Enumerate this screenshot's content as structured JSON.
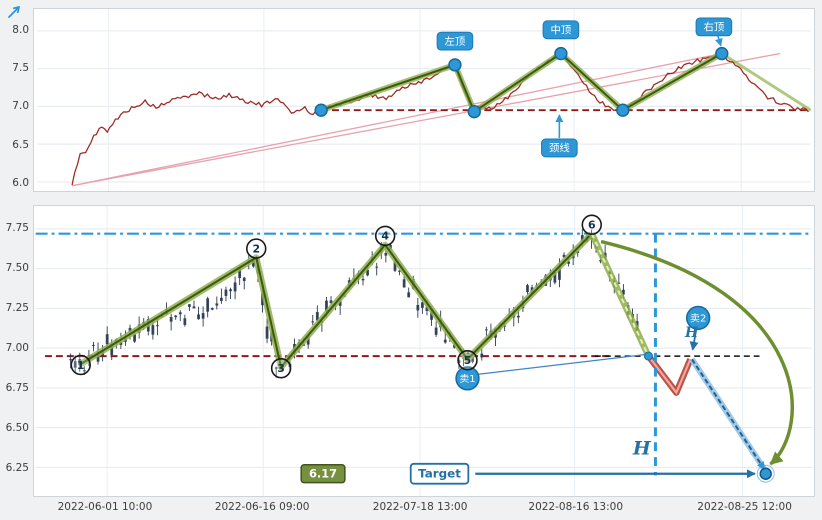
{
  "axes": {
    "top_yticks": [
      "8.0",
      "7.5",
      "7.0",
      "6.5",
      "6.0"
    ],
    "bottom_yticks": [
      "7.75",
      "7.50",
      "7.25",
      "7.00",
      "6.75",
      "6.50",
      "6.25"
    ],
    "xticks": [
      "2022-06-01 10:00",
      "2022-06-16 09:00",
      "2022-07-18 13:00",
      "2022-08-16 13:00",
      "2022-08-25 12:00"
    ]
  },
  "colors": {
    "price_line": "#9e2b25",
    "neckline_red": "#8e1b1b",
    "pattern_green_halo": "#8fae4c",
    "pattern_green_core": "#3a5a12",
    "annotation_blue": "#2e97d6",
    "arrow_blue": "#2471a3",
    "candle": "#2b3a55",
    "pink_trendline": "#e6a3ad",
    "pullback_red": "#b03427",
    "olive_badge": "#75903e"
  },
  "chart_data": [
    {
      "panel": "top",
      "type": "line",
      "title": "",
      "ylim": [
        5.88,
        8.29
      ],
      "yticks": [
        8.0,
        7.5,
        7.0,
        6.5,
        6.0
      ],
      "series": [
        {
          "name": "price",
          "color": "#9e2b25",
          "anchors": [
            [
              0.045,
              5.95
            ],
            [
              0.05,
              6.18
            ],
            [
              0.057,
              6.42
            ],
            [
              0.063,
              6.38
            ],
            [
              0.072,
              6.58
            ],
            [
              0.082,
              6.72
            ],
            [
              0.09,
              6.68
            ],
            [
              0.1,
              6.8
            ],
            [
              0.112,
              6.92
            ],
            [
              0.125,
              7.0
            ],
            [
              0.14,
              7.06
            ],
            [
              0.155,
              6.98
            ],
            [
              0.17,
              7.07
            ],
            [
              0.19,
              7.12
            ],
            [
              0.21,
              7.18
            ],
            [
              0.23,
              7.1
            ],
            [
              0.25,
              7.15
            ],
            [
              0.27,
              7.07
            ],
            [
              0.29,
              7.02
            ],
            [
              0.31,
              7.09
            ],
            [
              0.33,
              6.92
            ],
            [
              0.345,
              6.99
            ],
            [
              0.356,
              6.9
            ],
            [
              0.367,
              6.95
            ],
            [
              0.39,
              7.03
            ],
            [
              0.41,
              7.08
            ],
            [
              0.43,
              7.16
            ],
            [
              0.45,
              7.1
            ],
            [
              0.47,
              7.24
            ],
            [
              0.49,
              7.3
            ],
            [
              0.51,
              7.4
            ],
            [
              0.53,
              7.5
            ],
            [
              0.54,
              7.55
            ],
            [
              0.55,
              7.28
            ],
            [
              0.558,
              7.04
            ],
            [
              0.565,
              6.93
            ],
            [
              0.572,
              7.03
            ],
            [
              0.58,
              6.95
            ],
            [
              0.592,
              7.0
            ],
            [
              0.61,
              7.14
            ],
            [
              0.63,
              7.34
            ],
            [
              0.65,
              7.54
            ],
            [
              0.665,
              7.64
            ],
            [
              0.677,
              7.7
            ],
            [
              0.69,
              7.54
            ],
            [
              0.702,
              7.38
            ],
            [
              0.716,
              7.18
            ],
            [
              0.73,
              7.04
            ],
            [
              0.745,
              6.97
            ],
            [
              0.757,
              6.95
            ],
            [
              0.772,
              7.06
            ],
            [
              0.788,
              7.2
            ],
            [
              0.805,
              7.34
            ],
            [
              0.825,
              7.48
            ],
            [
              0.845,
              7.58
            ],
            [
              0.865,
              7.64
            ],
            [
              0.885,
              7.7
            ],
            [
              0.905,
              7.52
            ],
            [
              0.925,
              7.32
            ],
            [
              0.945,
              7.12
            ],
            [
              0.965,
              7.02
            ],
            [
              0.982,
              6.97
            ],
            [
              1.0,
              6.95
            ]
          ]
        }
      ],
      "pivots": [
        {
          "x": 0.367,
          "v": 6.95,
          "label": ""
        },
        {
          "x": 0.54,
          "v": 7.55,
          "label": "左顶"
        },
        {
          "x": 0.565,
          "v": 6.93,
          "label": ""
        },
        {
          "x": 0.677,
          "v": 7.7,
          "label": "中顶"
        },
        {
          "x": 0.757,
          "v": 6.95,
          "label": ""
        },
        {
          "x": 0.885,
          "v": 7.7,
          "label": "右顶"
        }
      ],
      "neckline": {
        "v": 6.95,
        "x0": 0.367,
        "x1": 1.0,
        "label": "颈线",
        "label_x": 0.675,
        "label_v": 6.45
      },
      "trendlines": [
        {
          "x0": 0.045,
          "v0": 5.95,
          "x1": 0.885,
          "v1": 7.7
        },
        {
          "x0": 0.045,
          "v0": 5.95,
          "x1": 0.96,
          "v1": 7.7
        }
      ],
      "tail": {
        "x0": 0.885,
        "v0": 7.7,
        "x1": 1.0,
        "v1": 6.95
      }
    },
    {
      "panel": "bottom",
      "type": "candlestick",
      "title": "",
      "ylim": [
        6.07,
        7.894
      ],
      "yticks": [
        7.75,
        7.5,
        7.25,
        7.0,
        6.75,
        6.5,
        6.25
      ],
      "xticks": [
        {
          "pos": 0.092,
          "label": "2022-06-01 10:00"
        },
        {
          "pos": 0.293,
          "label": "2022-06-16 09:00"
        },
        {
          "pos": 0.495,
          "label": "2022-07-18 13:00"
        },
        {
          "pos": 0.694,
          "label": "2022-08-16 13:00"
        },
        {
          "pos": 0.91,
          "label": "2022-08-25 12:00"
        }
      ],
      "candles": {
        "color": "#2b3a55",
        "x0": 0.045,
        "x1": 0.78,
        "step": 4.6,
        "body": 2.8,
        "seed": 11,
        "trend": [
          [
            0.045,
            6.92
          ],
          [
            0.058,
            6.9
          ],
          [
            0.1,
            7.05
          ],
          [
            0.16,
            7.18
          ],
          [
            0.22,
            7.22
          ],
          [
            0.284,
            7.57
          ],
          [
            0.3,
            7.05
          ],
          [
            0.316,
            6.88
          ],
          [
            0.36,
            7.15
          ],
          [
            0.41,
            7.4
          ],
          [
            0.45,
            7.65
          ],
          [
            0.5,
            7.25
          ],
          [
            0.556,
            6.93
          ],
          [
            0.6,
            7.15
          ],
          [
            0.66,
            7.45
          ],
          [
            0.716,
            7.72
          ],
          [
            0.75,
            7.4
          ],
          [
            0.78,
            7.05
          ]
        ]
      },
      "zigzag": {
        "points": [
          [
            0.058,
            6.9
          ],
          [
            0.284,
            7.57
          ],
          [
            0.316,
            6.88
          ],
          [
            0.45,
            7.65
          ],
          [
            0.556,
            6.93
          ],
          [
            0.716,
            7.72
          ]
        ],
        "numbers": [
          "1",
          "2",
          "3",
          "4",
          "5",
          "6"
        ],
        "decline_to": [
          0.789,
          6.95
        ]
      },
      "pullback": {
        "points": [
          [
            0.789,
            6.95
          ],
          [
            0.825,
            6.72
          ],
          [
            0.843,
            6.93
          ]
        ]
      },
      "breakdown": {
        "from": [
          0.845,
          6.93
        ],
        "to": [
          0.938,
          6.24
        ]
      },
      "neckline_red": {
        "v": 6.95,
        "x0": 0.012,
        "x1": 0.74
      },
      "neckline_black": {
        "v": 6.95,
        "x0": 0.72,
        "x1": 0.932
      },
      "resistance": {
        "v": 7.72,
        "x0": 0.0,
        "x1": 1.0
      },
      "vline": {
        "x": 0.798,
        "v0": 7.72,
        "v1": 6.2
      },
      "sell1": {
        "label": "卖1",
        "x": 0.556,
        "v": 6.81,
        "line_to": [
          0.785,
          6.96
        ]
      },
      "sell2": {
        "label": "卖2",
        "x": 0.853,
        "v": 7.19,
        "arrow_to": [
          0.846,
          6.99
        ]
      },
      "h_small": {
        "text": "H",
        "x": 0.836,
        "v": 7.07
      },
      "h_big": {
        "text": "H",
        "x": 0.769,
        "v": 6.33
      },
      "value_badge": {
        "text": "6.17",
        "x": 0.37,
        "v": 6.21
      },
      "target_badge": {
        "text": "Target",
        "x": 0.52,
        "v": 6.21
      },
      "target_arrow": {
        "x0": 0.566,
        "x1": 0.926,
        "v": 6.21
      },
      "target_point": {
        "x": 0.94,
        "v": 6.21
      },
      "neck_break_dot": {
        "x": 0.789,
        "v": 6.95
      },
      "curve": {
        "from": [
          0.728,
          7.67
        ],
        "c1": [
          1.0,
          7.35
        ],
        "c2": [
          1.0,
          6.5
        ],
        "to": [
          0.946,
          6.27
        ]
      }
    }
  ]
}
